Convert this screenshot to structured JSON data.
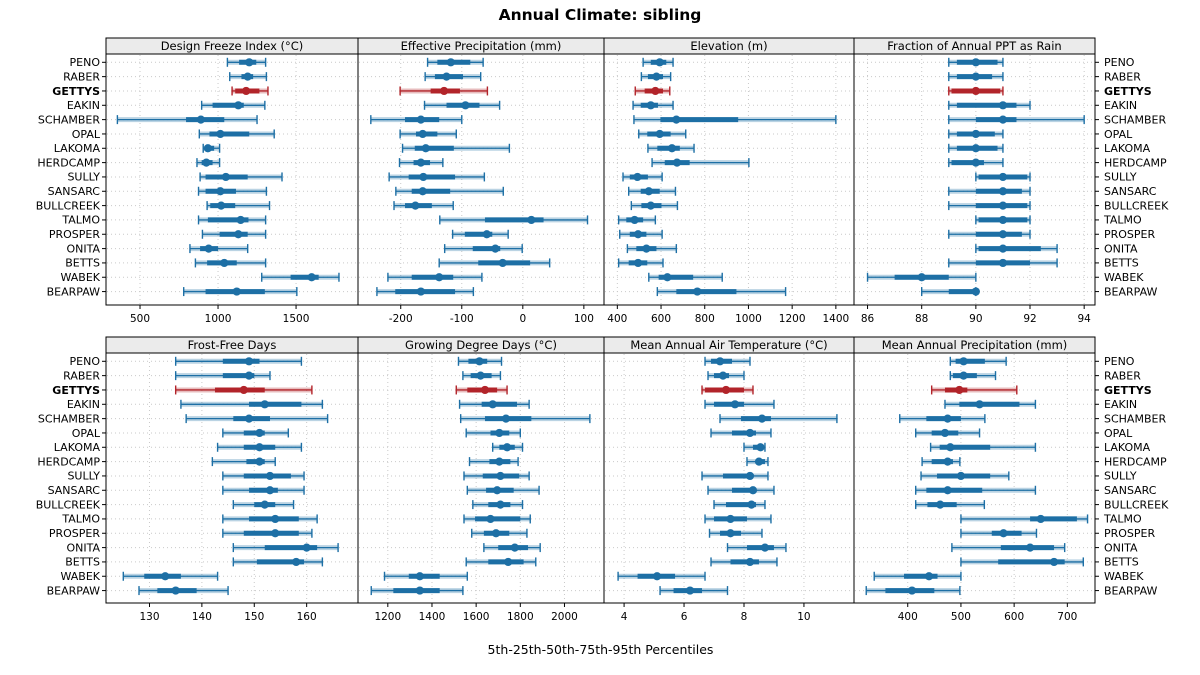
{
  "title": "Annual Climate: sibling",
  "xlabel": "5th-25th-50th-75th-95th Percentiles",
  "highlight_station": "GETTYS",
  "colors": {
    "series": "#1d6fa5",
    "highlight": "#b2242a",
    "strip_bg": "#ebebeb",
    "grid": "#c9c9c9",
    "border": "#000000",
    "background": "#ffffff"
  },
  "chart_data": {
    "type": "trellis-percentile-dotplot",
    "percentile_labels": [
      "5th",
      "25th",
      "50th",
      "75th",
      "95th"
    ],
    "stations": [
      "PENO",
      "RABER",
      "GETTYS",
      "EAKIN",
      "SCHAMBER",
      "OPAL",
      "LAKOMA",
      "HERDCAMP",
      "SULLY",
      "SANSARC",
      "BULLCREEK",
      "TALMO",
      "PROSPER",
      "ONITA",
      "BETTS",
      "WABEK",
      "BEARPAW"
    ],
    "panels": [
      {
        "title": "Design Freeze Index (°C)",
        "row": 0,
        "xticks": [
          500,
          1000,
          1500
        ],
        "xlim": [
          282,
          1897
        ],
        "values": [
          [
            1060,
            1135,
            1200,
            1245,
            1305
          ],
          [
            1075,
            1150,
            1190,
            1225,
            1310
          ],
          [
            1090,
            1110,
            1180,
            1265,
            1320
          ],
          [
            895,
            965,
            1130,
            1165,
            1300
          ],
          [
            355,
            795,
            890,
            1040,
            1250
          ],
          [
            880,
            945,
            1015,
            1200,
            1360
          ],
          [
            905,
            920,
            935,
            975,
            1010
          ],
          [
            865,
            895,
            925,
            965,
            1010
          ],
          [
            885,
            920,
            1050,
            1190,
            1410
          ],
          [
            875,
            920,
            1015,
            1115,
            1310
          ],
          [
            930,
            950,
            1020,
            1110,
            1330
          ],
          [
            875,
            935,
            1145,
            1195,
            1305
          ],
          [
            900,
            1010,
            1130,
            1190,
            1305
          ],
          [
            820,
            885,
            940,
            1000,
            1190
          ],
          [
            855,
            930,
            1040,
            1120,
            1305
          ],
          [
            1280,
            1465,
            1600,
            1645,
            1775
          ],
          [
            780,
            920,
            1120,
            1300,
            1505
          ]
        ]
      },
      {
        "title": "Effective Precipitation (mm)",
        "row": 0,
        "xticks": [
          -200,
          -100,
          0,
          100
        ],
        "xlim": [
          -270,
          133
        ],
        "values": [
          [
            -156,
            -140,
            -118,
            -86,
            -65
          ],
          [
            -160,
            -144,
            -125,
            -98,
            -69
          ],
          [
            -201,
            -151,
            -129,
            -103,
            -58
          ],
          [
            -161,
            -125,
            -94,
            -71,
            -38
          ],
          [
            -249,
            -193,
            -167,
            -137,
            -100
          ],
          [
            -201,
            -175,
            -164,
            -140,
            -109
          ],
          [
            -197,
            -177,
            -159,
            -113,
            -22
          ],
          [
            -202,
            -179,
            -167,
            -152,
            -131
          ],
          [
            -219,
            -187,
            -163,
            -111,
            -63
          ],
          [
            -208,
            -182,
            -164,
            -119,
            -32
          ],
          [
            -211,
            -193,
            -176,
            -149,
            -114
          ],
          [
            -136,
            -62,
            14,
            34,
            106
          ],
          [
            -115,
            -95,
            -59,
            -50,
            -24
          ],
          [
            -128,
            -82,
            -45,
            -37,
            -1
          ],
          [
            -137,
            -73,
            -33,
            12,
            44
          ],
          [
            -221,
            -182,
            -137,
            -114,
            -67
          ],
          [
            -239,
            -209,
            -167,
            -111,
            -81
          ]
        ]
      },
      {
        "title": "Elevation (m)",
        "row": 0,
        "xticks": [
          400,
          600,
          800,
          1000,
          1200,
          1400
        ],
        "xlim": [
          339,
          1483
        ],
        "values": [
          [
            518,
            553,
            594,
            624,
            655
          ],
          [
            510,
            540,
            579,
            609,
            644
          ],
          [
            482,
            525,
            574,
            609,
            640
          ],
          [
            472,
            507,
            553,
            586,
            655
          ],
          [
            476,
            597,
            670,
            953,
            1400
          ],
          [
            498,
            537,
            594,
            644,
            713
          ],
          [
            540,
            583,
            650,
            686,
            751
          ],
          [
            559,
            617,
            673,
            731,
            1002
          ],
          [
            426,
            457,
            492,
            540,
            605
          ],
          [
            452,
            507,
            544,
            594,
            666
          ],
          [
            464,
            510,
            553,
            602,
            675
          ],
          [
            406,
            441,
            479,
            518,
            574
          ],
          [
            411,
            457,
            495,
            533,
            605
          ],
          [
            446,
            487,
            533,
            579,
            670
          ],
          [
            406,
            452,
            495,
            537,
            609
          ],
          [
            544,
            589,
            629,
            747,
            880
          ],
          [
            583,
            670,
            766,
            945,
            1170
          ]
        ]
      },
      {
        "title": "Fraction of Annual PPT as Rain",
        "row": 0,
        "xticks": [
          86,
          88,
          90,
          92,
          94
        ],
        "xlim": [
          85.5,
          94.4
        ],
        "values": [
          [
            89,
            89.3,
            90,
            90.8,
            91
          ],
          [
            89,
            89.3,
            90,
            90.6,
            91
          ],
          [
            89,
            89.1,
            90,
            90.9,
            91
          ],
          [
            89,
            89.3,
            91,
            91.5,
            92
          ],
          [
            89,
            90,
            91,
            91.5,
            94
          ],
          [
            89,
            89.3,
            90,
            90.7,
            91
          ],
          [
            89,
            89.3,
            90,
            90.8,
            91
          ],
          [
            89,
            89.1,
            90,
            90.3,
            91
          ],
          [
            90,
            90.1,
            91,
            91.9,
            92
          ],
          [
            89,
            90,
            91,
            91.7,
            92
          ],
          [
            89,
            90,
            91,
            91.9,
            92
          ],
          [
            90,
            90.1,
            91,
            91.9,
            92
          ],
          [
            89,
            90,
            91,
            91.7,
            92
          ],
          [
            90,
            90.1,
            91,
            92.4,
            93
          ],
          [
            89,
            90,
            91,
            92,
            93
          ],
          [
            86,
            87,
            88,
            89,
            90
          ],
          [
            88,
            89,
            90,
            90,
            90
          ]
        ]
      },
      {
        "title": "Frost-Free Days",
        "row": 1,
        "xticks": [
          130,
          140,
          150,
          160
        ],
        "xlim": [
          121.7,
          169.8
        ],
        "values": [
          [
            135,
            144,
            149,
            151,
            159
          ],
          [
            135,
            144,
            149,
            150,
            153
          ],
          [
            135,
            142.5,
            148,
            152,
            161
          ],
          [
            136,
            149,
            152,
            159,
            163
          ],
          [
            137,
            146,
            149,
            153,
            164
          ],
          [
            144,
            148,
            151,
            152,
            156.5
          ],
          [
            143,
            148,
            151,
            154,
            159
          ],
          [
            142,
            148.5,
            151,
            152,
            154
          ],
          [
            144,
            148,
            153,
            157,
            159.5
          ],
          [
            144,
            149,
            153,
            154.5,
            159.5
          ],
          [
            146,
            150,
            152,
            154,
            157.5
          ],
          [
            144,
            149,
            154,
            158.5,
            162
          ],
          [
            144,
            148,
            154,
            158.5,
            161
          ],
          [
            146,
            152,
            160,
            162,
            166
          ],
          [
            146,
            150.5,
            158,
            159.5,
            163
          ],
          [
            125,
            129,
            133,
            136,
            143
          ],
          [
            128,
            131.5,
            135,
            139,
            145
          ]
        ]
      },
      {
        "title": "Growing Degree Days (°C)",
        "row": 1,
        "xticks": [
          1200,
          1400,
          1600,
          1800,
          2000
        ],
        "xlim": [
          1065,
          2179
        ],
        "values": [
          [
            1520,
            1565,
            1615,
            1650,
            1715
          ],
          [
            1540,
            1575,
            1620,
            1670,
            1710
          ],
          [
            1510,
            1560,
            1640,
            1695,
            1740
          ],
          [
            1525,
            1625,
            1675,
            1785,
            1840
          ],
          [
            1530,
            1640,
            1735,
            1850,
            2115
          ],
          [
            1555,
            1665,
            1705,
            1750,
            1800
          ],
          [
            1675,
            1705,
            1740,
            1775,
            1810
          ],
          [
            1570,
            1660,
            1705,
            1755,
            1790
          ],
          [
            1545,
            1630,
            1710,
            1795,
            1840
          ],
          [
            1560,
            1645,
            1695,
            1770,
            1885
          ],
          [
            1585,
            1655,
            1710,
            1755,
            1810
          ],
          [
            1545,
            1595,
            1665,
            1800,
            1845
          ],
          [
            1580,
            1635,
            1690,
            1750,
            1830
          ],
          [
            1635,
            1700,
            1775,
            1835,
            1890
          ],
          [
            1555,
            1655,
            1745,
            1815,
            1870
          ],
          [
            1185,
            1295,
            1345,
            1435,
            1560
          ],
          [
            1125,
            1225,
            1345,
            1435,
            1540
          ]
        ]
      },
      {
        "title": "Mean Annual Air Temperature (°C)",
        "row": 1,
        "xticks": [
          4,
          6,
          8,
          10
        ],
        "xlim": [
          3.33,
          11.67
        ],
        "values": [
          [
            6.7,
            6.9,
            7.2,
            7.6,
            8.2
          ],
          [
            6.8,
            7.0,
            7.3,
            7.5,
            8.0
          ],
          [
            6.6,
            6.7,
            7.4,
            8.0,
            8.3
          ],
          [
            6.7,
            7.0,
            7.7,
            8.0,
            9.0
          ],
          [
            7.2,
            7.9,
            8.6,
            8.9,
            11.1
          ],
          [
            6.9,
            7.6,
            8.2,
            8.4,
            8.9
          ],
          [
            8.0,
            8.3,
            8.55,
            8.65,
            8.7
          ],
          [
            8.1,
            8.4,
            8.5,
            8.7,
            8.8
          ],
          [
            6.6,
            7.3,
            8.2,
            8.3,
            8.8
          ],
          [
            6.8,
            7.6,
            8.3,
            8.4,
            9.0
          ],
          [
            7.0,
            7.4,
            8.25,
            8.4,
            8.7
          ],
          [
            6.7,
            7.0,
            7.55,
            8.1,
            8.9
          ],
          [
            6.85,
            7.2,
            7.55,
            7.9,
            8.6
          ],
          [
            7.45,
            8.1,
            8.7,
            9.0,
            9.4
          ],
          [
            6.9,
            7.55,
            8.2,
            8.5,
            9.1
          ],
          [
            3.8,
            4.45,
            5.1,
            5.7,
            6.7
          ],
          [
            5.2,
            5.65,
            6.2,
            6.6,
            7.45
          ]
        ]
      },
      {
        "title": "Mean Annual Precipitation (mm)",
        "row": 1,
        "xticks": [
          400,
          500,
          600,
          700
        ],
        "xlim": [
          299,
          752
        ],
        "values": [
          [
            480,
            490,
            505,
            545,
            585
          ],
          [
            480,
            485,
            505,
            530,
            565
          ],
          [
            445,
            470,
            497,
            512,
            605
          ],
          [
            470,
            497,
            535,
            610,
            640
          ],
          [
            385,
            435,
            475,
            500,
            545
          ],
          [
            415,
            445,
            470,
            495,
            535
          ],
          [
            443,
            460,
            480,
            555,
            640
          ],
          [
            427,
            445,
            475,
            485,
            498
          ],
          [
            425,
            455,
            500,
            555,
            590
          ],
          [
            415,
            435,
            475,
            540,
            640
          ],
          [
            415,
            437,
            461,
            492,
            544
          ],
          [
            500,
            630,
            650,
            718,
            738
          ],
          [
            500,
            558,
            580,
            614,
            642
          ],
          [
            483,
            575,
            630,
            675,
            695
          ],
          [
            500,
            570,
            675,
            695,
            730
          ],
          [
            337,
            393,
            440,
            456,
            500
          ],
          [
            322,
            358,
            408,
            450,
            498
          ]
        ]
      }
    ]
  }
}
